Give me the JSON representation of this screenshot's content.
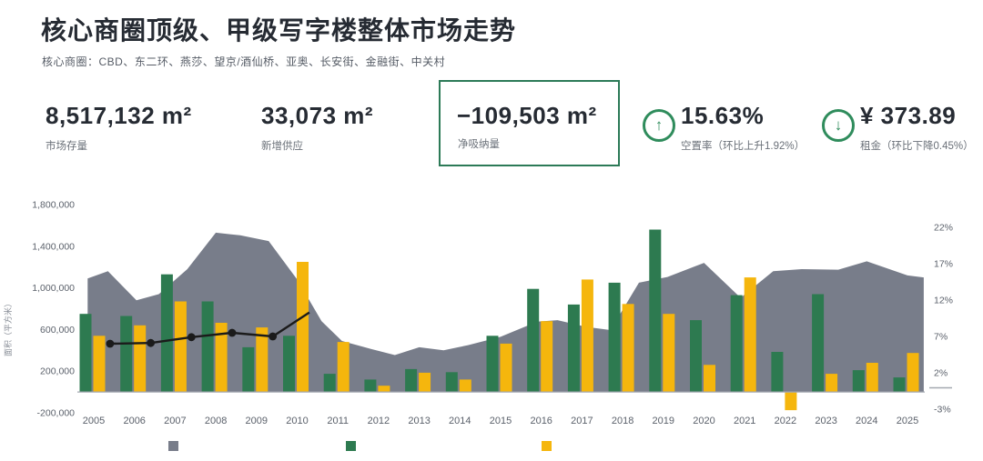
{
  "header": {
    "title": "核心商圈顶级、甲级写字楼整体市场走势",
    "subtitle": "核心商圈：CBD、东二环、燕莎、望京/酒仙桥、亚奥、长安街、金融街、中关村"
  },
  "stats": {
    "stock": {
      "value": "8,517,132 m²",
      "label": "市场存量"
    },
    "new_supply": {
      "value": "33,073 m²",
      "label": "新增供应"
    },
    "net_absorption": {
      "value": "−109,503 m²",
      "label": "净吸纳量"
    },
    "vacancy": {
      "value": "15.63%",
      "label": "空置率（环比上升1.92%）",
      "direction": "up"
    },
    "rent": {
      "value": "¥ 373.89",
      "label": "租金（环比下降0.45%）",
      "direction": "down"
    }
  },
  "icons": {
    "up_arrow": "↑",
    "down_arrow": "↓"
  },
  "colors": {
    "green_bar": "#2d7a50",
    "yellow_bar": "#f5b60d",
    "gray_area": "#787d8a",
    "line": "#1b1b1b",
    "accent_green": "#2c7a57",
    "text_dark": "#262b33",
    "text_gray": "#6a7078",
    "axis_gray": "#5b616b"
  },
  "legend": {
    "items": [
      {
        "series": "gray-area",
        "color": "#787d8a",
        "label": ""
      },
      {
        "series": "green-bars",
        "color": "#2d7a50",
        "label": ""
      },
      {
        "series": "yellow-bars",
        "color": "#f5b60d",
        "label": ""
      }
    ]
  },
  "chart_data": {
    "type": "combo",
    "title": "核心商圈顶级、甲级写字楼整体市场走势",
    "categories": [
      2005,
      2006,
      2007,
      2008,
      2009,
      2010,
      2011,
      2012,
      2013,
      2014,
      2015,
      2016,
      2017,
      2018,
      2019,
      2020,
      2021,
      2022,
      2023,
      2024,
      2025
    ],
    "series": [
      {
        "name": "gray-area",
        "type": "area",
        "color": "#787d8a",
        "axis": "left",
        "points": [
          [
            2004.85,
            1090000
          ],
          [
            2005.35,
            1160000
          ],
          [
            2006.05,
            880000
          ],
          [
            2006.6,
            940000
          ],
          [
            2007.3,
            1180000
          ],
          [
            2008.0,
            1530000
          ],
          [
            2008.6,
            1505000
          ],
          [
            2009.3,
            1450000
          ],
          [
            2010.0,
            1080000
          ],
          [
            2010.6,
            680000
          ],
          [
            2011.1,
            490000
          ],
          [
            2011.8,
            415000
          ],
          [
            2012.4,
            355000
          ],
          [
            2013.0,
            430000
          ],
          [
            2013.6,
            400000
          ],
          [
            2014.2,
            450000
          ],
          [
            2015.0,
            530000
          ],
          [
            2015.9,
            675000
          ],
          [
            2016.4,
            690000
          ],
          [
            2017.1,
            625000
          ],
          [
            2017.7,
            595000
          ],
          [
            2018.4,
            1050000
          ],
          [
            2019.1,
            1105000
          ],
          [
            2020.0,
            1240000
          ],
          [
            2020.9,
            905000
          ],
          [
            2021.7,
            1160000
          ],
          [
            2022.4,
            1180000
          ],
          [
            2023.3,
            1175000
          ],
          [
            2024.0,
            1255000
          ],
          [
            2025.0,
            1120000
          ],
          [
            2025.4,
            1100000
          ]
        ]
      },
      {
        "name": "green-bars",
        "type": "bar",
        "color": "#2d7a50",
        "axis": "left",
        "values": [
          750000,
          730000,
          1130000,
          870000,
          430000,
          540000,
          175000,
          120000,
          220000,
          190000,
          540000,
          990000,
          840000,
          1050000,
          1560000,
          690000,
          930000,
          385000,
          940000,
          210000,
          140000
        ]
      },
      {
        "name": "yellow-bars",
        "type": "bar",
        "color": "#f5b60d",
        "axis": "left",
        "values": [
          540000,
          640000,
          870000,
          665000,
          620000,
          1250000,
          480000,
          60000,
          185000,
          120000,
          465000,
          680000,
          1080000,
          845000,
          750000,
          260000,
          1100000,
          -175000,
          175000,
          280000,
          375000
        ]
      },
      {
        "name": "black-line",
        "type": "line",
        "color": "#1b1b1b",
        "axis": "right",
        "points": [
          [
            2005.4,
            6.0
          ],
          [
            2006.4,
            6.1
          ],
          [
            2007.4,
            6.9
          ],
          [
            2008.4,
            7.5
          ],
          [
            2009.4,
            7.0
          ],
          [
            2010.3,
            10.3
          ]
        ]
      }
    ],
    "left_axis": {
      "title": "面积（平方米）",
      "range": [
        -200000,
        1800000
      ],
      "ticks": [
        {
          "label": "1,800,000",
          "value": 1800000
        },
        {
          "label": "1,400,000",
          "value": 1400000
        },
        {
          "label": "1,000,000",
          "value": 1000000
        },
        {
          "label": "600,000",
          "value": 600000
        },
        {
          "label": "200,000",
          "value": 200000
        },
        {
          "label": "-200,000",
          "value": -200000
        }
      ]
    },
    "right_axis": {
      "range": [
        -3,
        22
      ],
      "ticks": [
        {
          "label": "22%",
          "value": 22
        },
        {
          "label": "17%",
          "value": 17
        },
        {
          "label": "12%",
          "value": 12
        },
        {
          "label": "7%",
          "value": 7
        },
        {
          "label": "2%",
          "value": 2
        },
        {
          "label": "-3%",
          "value": -3
        }
      ]
    },
    "grid": false,
    "legend_position": "bottom"
  }
}
